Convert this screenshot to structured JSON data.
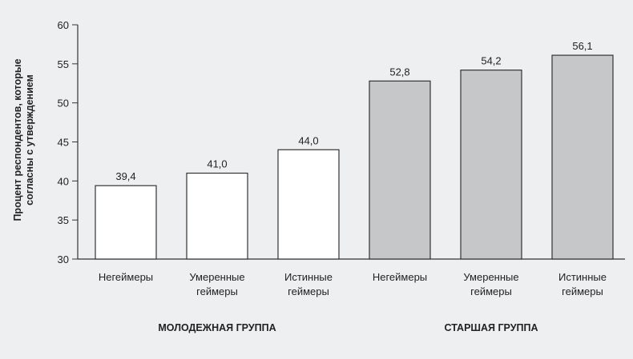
{
  "chart_data": {
    "type": "bar",
    "y_label": "Процент респондентов, которые\nсогласны с утверждением",
    "categories": [
      "Негеймеры",
      "Умеренные\nгеймеры",
      "Истинные\nгеймеры",
      "Негеймеры",
      "Умеренные\nгеймеры",
      "Истинные\nгеймеры"
    ],
    "values": [
      39.4,
      41.0,
      44.0,
      52.8,
      54.2,
      56.1
    ],
    "value_labels": [
      "39,4",
      "41,0",
      "44,0",
      "52,8",
      "54,2",
      "56,1"
    ],
    "groups": [
      {
        "name": "МОЛОДЕЖНАЯ ГРУППА",
        "color": "#ffffff"
      },
      {
        "name": "СТАРШАЯ ГРУППА",
        "color": "#c6c7c9"
      }
    ],
    "ylim": [
      30,
      60
    ],
    "yticks": [
      30,
      35,
      40,
      45,
      50,
      55,
      60
    ],
    "grid": false
  }
}
